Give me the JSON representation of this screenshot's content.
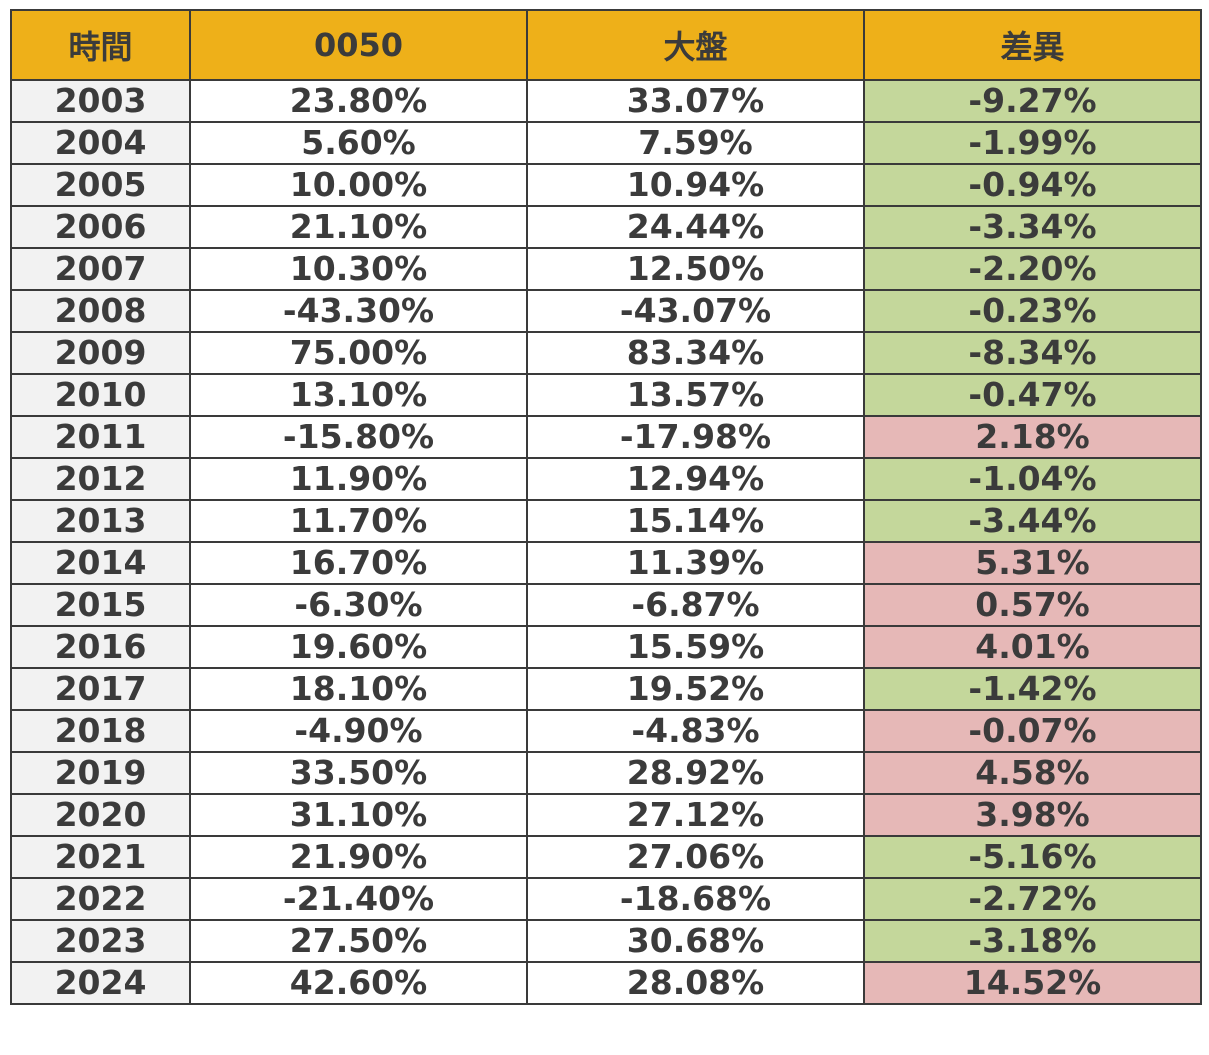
{
  "table": {
    "headers": [
      "時間",
      "0050",
      "大盤",
      "差異"
    ],
    "rows": [
      {
        "year": "2003",
        "etf": "23.80%",
        "market": "33.07%",
        "diff": "-9.27%",
        "status": "under"
      },
      {
        "year": "2004",
        "etf": "5.60%",
        "market": "7.59%",
        "diff": "-1.99%",
        "status": "under"
      },
      {
        "year": "2005",
        "etf": "10.00%",
        "market": "10.94%",
        "diff": "-0.94%",
        "status": "under"
      },
      {
        "year": "2006",
        "etf": "21.10%",
        "market": "24.44%",
        "diff": "-3.34%",
        "status": "under"
      },
      {
        "year": "2007",
        "etf": "10.30%",
        "market": "12.50%",
        "diff": "-2.20%",
        "status": "under"
      },
      {
        "year": "2008",
        "etf": "-43.30%",
        "market": "-43.07%",
        "diff": "-0.23%",
        "status": "under"
      },
      {
        "year": "2009",
        "etf": "75.00%",
        "market": "83.34%",
        "diff": "-8.34%",
        "status": "under"
      },
      {
        "year": "2010",
        "etf": "13.10%",
        "market": "13.57%",
        "diff": "-0.47%",
        "status": "under"
      },
      {
        "year": "2011",
        "etf": "-15.80%",
        "market": "-17.98%",
        "diff": "2.18%",
        "status": "over"
      },
      {
        "year": "2012",
        "etf": "11.90%",
        "market": "12.94%",
        "diff": "-1.04%",
        "status": "under"
      },
      {
        "year": "2013",
        "etf": "11.70%",
        "market": "15.14%",
        "diff": "-3.44%",
        "status": "under"
      },
      {
        "year": "2014",
        "etf": "16.70%",
        "market": "11.39%",
        "diff": "5.31%",
        "status": "over"
      },
      {
        "year": "2015",
        "etf": "-6.30%",
        "market": "-6.87%",
        "diff": "0.57%",
        "status": "over"
      },
      {
        "year": "2016",
        "etf": "19.60%",
        "market": "15.59%",
        "diff": "4.01%",
        "status": "over"
      },
      {
        "year": "2017",
        "etf": "18.10%",
        "market": "19.52%",
        "diff": "-1.42%",
        "status": "under"
      },
      {
        "year": "2018",
        "etf": "-4.90%",
        "market": "-4.83%",
        "diff": "-0.07%",
        "status": "over"
      },
      {
        "year": "2019",
        "etf": "33.50%",
        "market": "28.92%",
        "diff": "4.58%",
        "status": "over"
      },
      {
        "year": "2020",
        "etf": "31.10%",
        "market": "27.12%",
        "diff": "3.98%",
        "status": "over"
      },
      {
        "year": "2021",
        "etf": "21.90%",
        "market": "27.06%",
        "diff": "-5.16%",
        "status": "under"
      },
      {
        "year": "2022",
        "etf": "-21.40%",
        "market": "-18.68%",
        "diff": "-2.72%",
        "status": "under"
      },
      {
        "year": "2023",
        "etf": "27.50%",
        "market": "30.68%",
        "diff": "-3.18%",
        "status": "under"
      },
      {
        "year": "2024",
        "etf": "42.60%",
        "market": "28.08%",
        "diff": "14.52%",
        "status": "over"
      }
    ]
  },
  "colors": {
    "header_bg": "#eeb019",
    "year_bg": "#f2f2f2",
    "under_bg": "#c4d79b",
    "over_bg": "#e6b8b7",
    "text": "#3b3b3b",
    "border": "#3a3a3a"
  }
}
